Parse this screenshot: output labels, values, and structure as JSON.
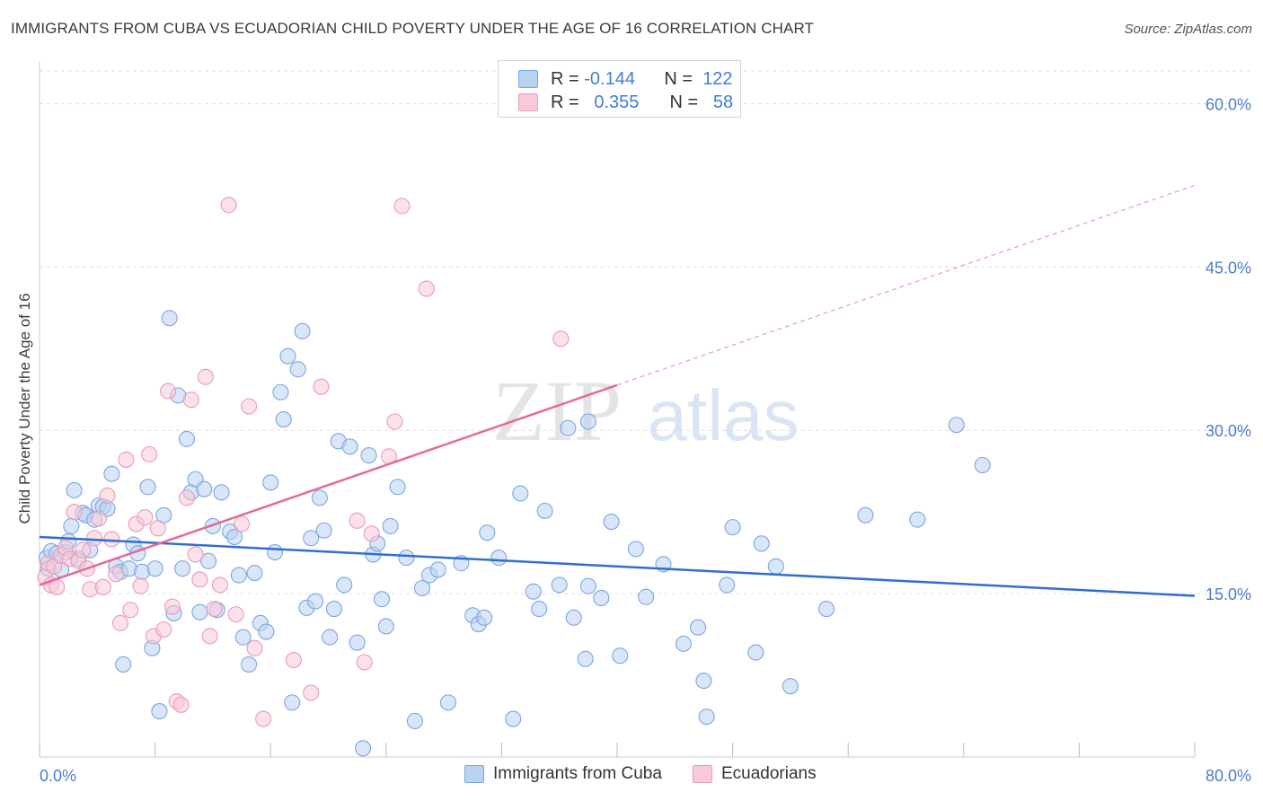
{
  "title": "IMMIGRANTS FROM CUBA VS ECUADORIAN CHILD POVERTY UNDER THE AGE OF 16 CORRELATION CHART",
  "source": "Source: ZipAtlas.com",
  "watermark": {
    "zip": "ZIP",
    "atlas": "atlas"
  },
  "colors": {
    "blue": "#4a7cc9",
    "blue_fill": "#b9d2f1",
    "pink": "#e56d98",
    "pink_fill": "#f8c9d8"
  },
  "legend": {
    "rows": [
      {
        "r_label": "R =",
        "r_value": "-0.144",
        "n_label": "N =",
        "n_value": "122"
      },
      {
        "r_label": "R =",
        "r_value": "0.355",
        "n_label": "N =",
        "n_value": "58"
      }
    ]
  },
  "bottom_legend": [
    "Immigrants from Cuba",
    "Ecuadorians"
  ],
  "chart_data": {
    "type": "scatter",
    "ylabel": "Child Poverty Under the Age of 16",
    "xlabel": "",
    "xlim": [
      0,
      80
    ],
    "ylim": [
      0,
      63
    ],
    "x_tick_labels": {
      "min": "0.0%",
      "max": "80.0%"
    },
    "y_ticks": [
      15,
      30,
      45,
      60
    ],
    "y_tick_labels": [
      "15.0%",
      "30.0%",
      "45.0%",
      "60.0%"
    ],
    "grid": true,
    "series": [
      {
        "name": "Immigrants from Cuba",
        "color": "#4a7cc9",
        "trend": {
          "x0": 0,
          "y0": 20.2,
          "x1": 80,
          "y1": 14.8,
          "dashed_after": null
        },
        "points": [
          [
            0.5,
            18.3
          ],
          [
            0.6,
            17.3
          ],
          [
            0.8,
            18.9
          ],
          [
            1.2,
            18.7
          ],
          [
            1.5,
            17.2
          ],
          [
            1.8,
            18.8
          ],
          [
            2.0,
            19.8
          ],
          [
            2.2,
            21.2
          ],
          [
            2.4,
            24.5
          ],
          [
            2.7,
            18.2
          ],
          [
            3.0,
            22.4
          ],
          [
            3.2,
            22.2
          ],
          [
            3.5,
            19.0
          ],
          [
            3.8,
            21.8
          ],
          [
            4.1,
            23.1
          ],
          [
            4.4,
            23.0
          ],
          [
            4.7,
            22.8
          ],
          [
            5.0,
            26.0
          ],
          [
            5.3,
            17.5
          ],
          [
            5.6,
            17.0
          ],
          [
            5.8,
            8.5
          ],
          [
            6.2,
            17.3
          ],
          [
            6.5,
            19.5
          ],
          [
            6.8,
            18.7
          ],
          [
            7.1,
            17.0
          ],
          [
            7.5,
            24.8
          ],
          [
            7.8,
            10.0
          ],
          [
            8.0,
            17.3
          ],
          [
            8.3,
            4.2
          ],
          [
            8.6,
            22.2
          ],
          [
            9.0,
            40.3
          ],
          [
            9.3,
            13.2
          ],
          [
            9.6,
            33.2
          ],
          [
            9.9,
            17.3
          ],
          [
            10.2,
            29.2
          ],
          [
            10.5,
            24.3
          ],
          [
            10.8,
            25.5
          ],
          [
            11.1,
            13.3
          ],
          [
            11.4,
            24.6
          ],
          [
            11.7,
            18.0
          ],
          [
            12.0,
            21.2
          ],
          [
            12.3,
            13.5
          ],
          [
            12.6,
            24.3
          ],
          [
            13.2,
            20.7
          ],
          [
            13.5,
            20.2
          ],
          [
            13.8,
            16.7
          ],
          [
            14.1,
            11.0
          ],
          [
            14.5,
            8.5
          ],
          [
            14.9,
            16.9
          ],
          [
            15.3,
            12.3
          ],
          [
            15.7,
            11.5
          ],
          [
            16.0,
            25.2
          ],
          [
            16.3,
            18.8
          ],
          [
            16.7,
            33.5
          ],
          [
            16.9,
            31.0
          ],
          [
            17.2,
            36.8
          ],
          [
            17.5,
            5.0
          ],
          [
            17.9,
            35.6
          ],
          [
            18.2,
            39.1
          ],
          [
            18.5,
            13.7
          ],
          [
            18.8,
            20.1
          ],
          [
            19.1,
            14.3
          ],
          [
            19.4,
            23.8
          ],
          [
            19.7,
            20.8
          ],
          [
            20.1,
            11.0
          ],
          [
            20.4,
            13.6
          ],
          [
            20.7,
            29.0
          ],
          [
            21.1,
            15.8
          ],
          [
            21.5,
            28.5
          ],
          [
            22.0,
            10.5
          ],
          [
            22.4,
            0.8
          ],
          [
            22.8,
            27.7
          ],
          [
            23.1,
            18.6
          ],
          [
            23.4,
            19.6
          ],
          [
            23.7,
            14.5
          ],
          [
            24.0,
            12.0
          ],
          [
            24.3,
            21.2
          ],
          [
            24.8,
            24.8
          ],
          [
            25.4,
            18.3
          ],
          [
            26.0,
            3.3
          ],
          [
            26.5,
            15.5
          ],
          [
            27.0,
            16.7
          ],
          [
            27.6,
            17.2
          ],
          [
            28.3,
            5.0
          ],
          [
            29.2,
            17.8
          ],
          [
            30.0,
            13.0
          ],
          [
            30.4,
            12.2
          ],
          [
            30.8,
            12.8
          ],
          [
            31.0,
            20.6
          ],
          [
            31.8,
            18.3
          ],
          [
            32.8,
            3.5
          ],
          [
            33.3,
            24.2
          ],
          [
            34.2,
            15.2
          ],
          [
            34.6,
            13.6
          ],
          [
            35.0,
            22.6
          ],
          [
            36.0,
            15.8
          ],
          [
            36.6,
            30.2
          ],
          [
            37.0,
            12.8
          ],
          [
            37.8,
            9.0
          ],
          [
            38.0,
            30.8
          ],
          [
            38.0,
            15.7
          ],
          [
            38.9,
            14.6
          ],
          [
            39.6,
            21.6
          ],
          [
            40.2,
            9.3
          ],
          [
            41.3,
            19.1
          ],
          [
            42.0,
            14.7
          ],
          [
            43.2,
            17.7
          ],
          [
            44.6,
            10.4
          ],
          [
            45.6,
            11.9
          ],
          [
            46.0,
            7.0
          ],
          [
            46.2,
            3.7
          ],
          [
            47.6,
            15.8
          ],
          [
            48.0,
            21.1
          ],
          [
            49.6,
            9.6
          ],
          [
            50.0,
            19.6
          ],
          [
            51.0,
            17.5
          ],
          [
            52.0,
            6.5
          ],
          [
            54.5,
            13.6
          ],
          [
            57.2,
            22.2
          ],
          [
            60.8,
            21.8
          ],
          [
            63.5,
            30.5
          ],
          [
            65.3,
            26.8
          ]
        ]
      },
      {
        "name": "Ecuadorians",
        "color": "#e56d98",
        "trend": {
          "x0": 0,
          "y0": 15.8,
          "x1": 80,
          "y1": 52.5,
          "dashed_after": 40
        },
        "points": [
          [
            0.4,
            16.5
          ],
          [
            0.6,
            17.8
          ],
          [
            0.8,
            15.8
          ],
          [
            1.0,
            17.5
          ],
          [
            1.2,
            15.6
          ],
          [
            1.5,
            18.5
          ],
          [
            1.8,
            19.2
          ],
          [
            2.1,
            18.2
          ],
          [
            2.4,
            22.5
          ],
          [
            2.7,
            18.0
          ],
          [
            3.0,
            19.0
          ],
          [
            3.3,
            17.3
          ],
          [
            3.5,
            15.4
          ],
          [
            3.8,
            20.1
          ],
          [
            4.1,
            21.9
          ],
          [
            4.4,
            15.6
          ],
          [
            4.7,
            24.0
          ],
          [
            5.0,
            20.0
          ],
          [
            5.3,
            16.8
          ],
          [
            5.6,
            12.3
          ],
          [
            6.0,
            27.3
          ],
          [
            6.3,
            13.5
          ],
          [
            6.7,
            21.4
          ],
          [
            7.0,
            15.7
          ],
          [
            7.3,
            22.0
          ],
          [
            7.6,
            27.8
          ],
          [
            7.9,
            11.1
          ],
          [
            8.2,
            21.0
          ],
          [
            8.6,
            11.7
          ],
          [
            8.9,
            33.6
          ],
          [
            9.2,
            13.8
          ],
          [
            9.5,
            5.1
          ],
          [
            9.8,
            4.8
          ],
          [
            10.2,
            23.8
          ],
          [
            10.5,
            32.8
          ],
          [
            10.8,
            18.6
          ],
          [
            11.1,
            16.3
          ],
          [
            11.5,
            34.9
          ],
          [
            11.8,
            11.1
          ],
          [
            12.1,
            13.6
          ],
          [
            12.5,
            15.8
          ],
          [
            13.1,
            50.7
          ],
          [
            13.6,
            13.1
          ],
          [
            14.0,
            21.4
          ],
          [
            14.5,
            32.2
          ],
          [
            14.9,
            10.0
          ],
          [
            15.5,
            3.5
          ],
          [
            17.6,
            8.9
          ],
          [
            18.8,
            5.9
          ],
          [
            19.5,
            34.0
          ],
          [
            22.0,
            21.7
          ],
          [
            22.5,
            8.7
          ],
          [
            23.0,
            20.5
          ],
          [
            24.2,
            27.6
          ],
          [
            24.6,
            30.8
          ],
          [
            25.1,
            50.6
          ],
          [
            26.8,
            43.0
          ],
          [
            36.1,
            38.4
          ]
        ]
      }
    ]
  }
}
